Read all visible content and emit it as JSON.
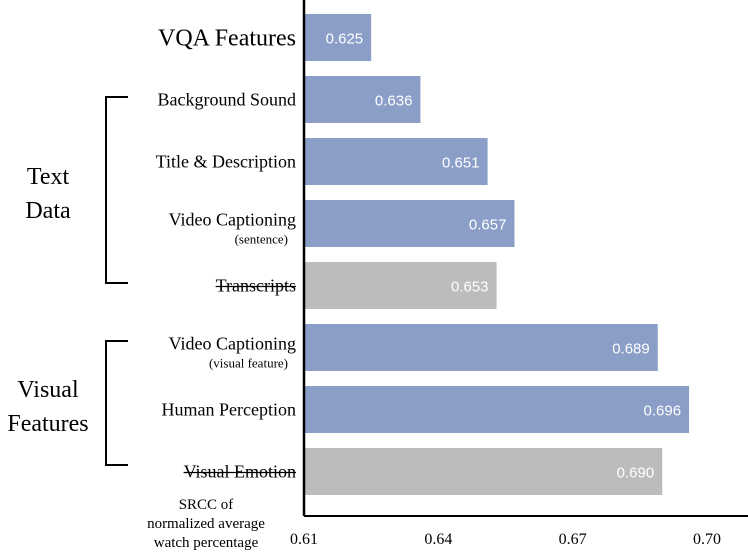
{
  "chart_data": {
    "type": "bar",
    "orientation": "horizontal",
    "categories": [
      {
        "label": "VQA Features",
        "sublabel": "",
        "strikethrough": false
      },
      {
        "label": "Background Sound",
        "sublabel": "",
        "strikethrough": false
      },
      {
        "label": "Title & Description",
        "sublabel": "",
        "strikethrough": false
      },
      {
        "label": "Video Captioning",
        "sublabel": "(sentence)",
        "strikethrough": false
      },
      {
        "label": "Transcripts",
        "sublabel": "",
        "strikethrough": true
      },
      {
        "label": "Video Captioning",
        "sublabel": "(visual feature)",
        "strikethrough": false
      },
      {
        "label": "Human Perception",
        "sublabel": "",
        "strikethrough": false
      },
      {
        "label": "Visual Emotion",
        "sublabel": "",
        "strikethrough": true
      }
    ],
    "values": [
      0.625,
      0.636,
      0.651,
      0.657,
      0.653,
      0.689,
      0.696,
      0.69
    ],
    "value_labels": [
      "0.625",
      "0.636",
      "0.651",
      "0.657",
      "0.653",
      "0.689",
      "0.696",
      "0.690"
    ],
    "bar_colors": [
      "#8a9ec8",
      "#8a9ec8",
      "#8a9ec8",
      "#8a9ec8",
      "#bcbcbc",
      "#8a9ec8",
      "#8a9ec8",
      "#bcbcbc"
    ],
    "groups": [
      {
        "lines": [
          "Text",
          "Data"
        ],
        "first": 1,
        "last": 4
      },
      {
        "lines": [
          "Visual",
          "Features"
        ],
        "first": 5,
        "last": 7
      }
    ],
    "xlabel_lines": [
      "SRCC of",
      "normalized average",
      "watch percentage"
    ],
    "xlim": [
      0.61,
      0.7
    ],
    "xticks": [
      0.61,
      0.64,
      0.67,
      0.7
    ],
    "xtick_labels": [
      "0.61",
      "0.64",
      "0.67",
      "0.70"
    ],
    "grid": false,
    "legend": "none"
  }
}
